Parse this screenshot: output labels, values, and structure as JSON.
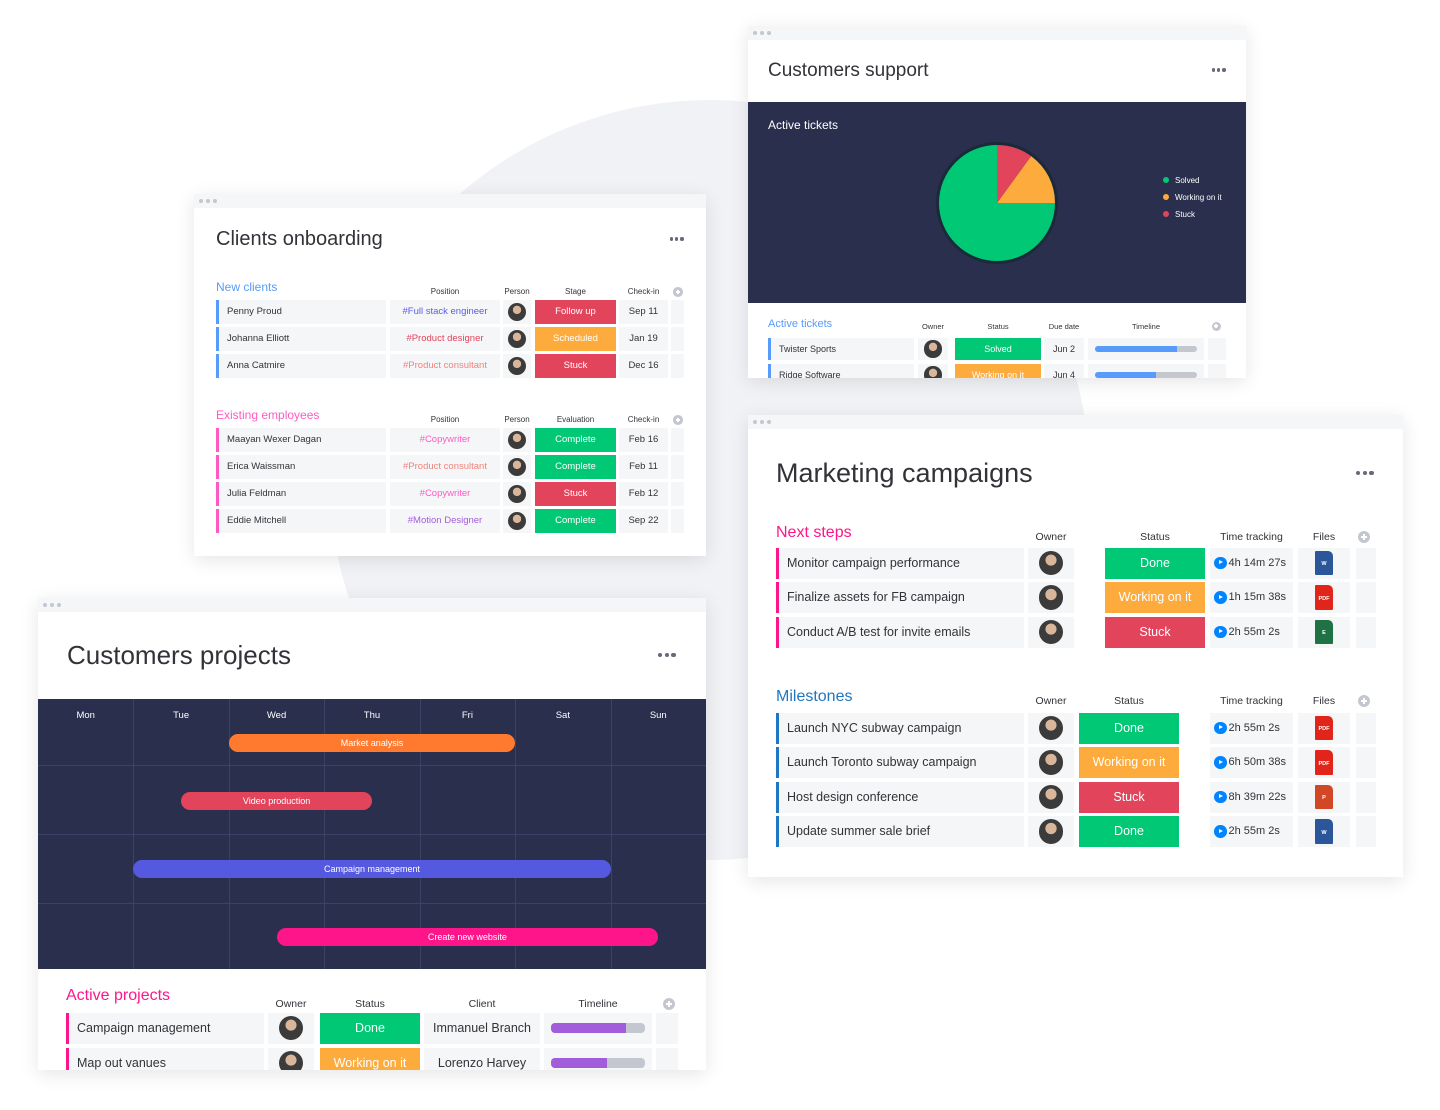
{
  "clients_onboarding": {
    "title": "Clients onboarding",
    "groups": [
      {
        "title": "New clients",
        "color": "#579bfc",
        "headers": [
          "Position",
          "Person",
          "Stage",
          "Check-in"
        ],
        "rows": [
          {
            "name": "Penny Proud",
            "position": {
              "label": "#Full stack engineer",
              "color": "#5b5be6"
            },
            "status": {
              "label": "Follow up",
              "color": "#e2445c"
            },
            "date": "Sep 11"
          },
          {
            "name": "Johanna Elliott",
            "position": {
              "label": "#Product designer",
              "color": "#e2445c"
            },
            "status": {
              "label": "Scheduled",
              "color": "#fdab3d"
            },
            "date": "Jan 19"
          },
          {
            "name": "Anna Catmire",
            "position": {
              "label": "#Product consultant",
              "color": "#f2837a"
            },
            "status": {
              "label": "Stuck",
              "color": "#e2445c"
            },
            "date": "Dec 16"
          }
        ]
      },
      {
        "title": "Existing employees",
        "color": "#ff5ac4",
        "headers": [
          "Position",
          "Person",
          "Evaluation",
          "Check-in"
        ],
        "rows": [
          {
            "name": "Maayan Wexer Dagan",
            "position": {
              "label": "#Copywriter",
              "color": "#ff5ac4"
            },
            "status": {
              "label": "Complete",
              "color": "#00c875"
            },
            "date": "Feb 16"
          },
          {
            "name": "Erica Waissman",
            "position": {
              "label": "#Product consultant",
              "color": "#f2837a"
            },
            "status": {
              "label": "Complete",
              "color": "#00c875"
            },
            "date": "Feb 11"
          },
          {
            "name": "Julia Feldman",
            "position": {
              "label": "#Copywriter",
              "color": "#ff5ac4"
            },
            "status": {
              "label": "Stuck",
              "color": "#e2445c"
            },
            "date": "Feb 12"
          },
          {
            "name": "Eddie Mitchell",
            "position": {
              "label": "#Motion Designer",
              "color": "#a25ddc"
            },
            "status": {
              "label": "Complete",
              "color": "#00c875"
            },
            "date": "Sep 22"
          }
        ]
      }
    ]
  },
  "customers_support": {
    "title": "Customers support",
    "chart": {
      "type": "pie",
      "title": "Active tickets",
      "series": [
        {
          "name": "Solved",
          "color": "#00c875",
          "value": 75
        },
        {
          "name": "Working on it",
          "color": "#fdab3d",
          "value": 15
        },
        {
          "name": "Stuck",
          "color": "#e2445c",
          "value": 10
        }
      ]
    },
    "group": {
      "title": "Active tickets",
      "color": "#579bfc",
      "timeline_color": "#579bfc",
      "headers": [
        "Owner",
        "Status",
        "Due date",
        "Timeline"
      ],
      "rows": [
        {
          "name": "Twister Sports",
          "status": {
            "label": "Solved",
            "color": "#00c875"
          },
          "date": "Jun 2",
          "timeline": 0.8
        },
        {
          "name": "Ridge Software",
          "status": {
            "label": "Working on it",
            "color": "#fdab3d"
          },
          "date": "Jun 4",
          "timeline": 0.6
        }
      ]
    }
  },
  "marketing_campaigns": {
    "title": "Marketing campaigns",
    "groups": [
      {
        "title": "Next steps",
        "color": "#ff158a",
        "headers": [
          "Owner",
          "Status",
          "Time tracking",
          "Files"
        ],
        "rows": [
          {
            "name": "Monitor campaign performance",
            "status": {
              "label": "Done",
              "color": "#00c875"
            },
            "time": "4h 14m 27s",
            "file": {
              "label": "W",
              "color": "#2b579a"
            }
          },
          {
            "name": "Finalize assets for FB campaign",
            "status": {
              "label": "Working on it",
              "color": "#fdab3d"
            },
            "time": "1h 15m 38s",
            "file": {
              "label": "PDF",
              "color": "#e1251b"
            }
          },
          {
            "name": "Conduct A/B test for invite emails",
            "status": {
              "label": "Stuck",
              "color": "#e2445c"
            },
            "time": "2h 55m 2s",
            "file": {
              "label": "E",
              "color": "#1f7244"
            }
          }
        ]
      },
      {
        "title": "Milestones",
        "color": "#1f76c2",
        "headers": [
          "Owner",
          "Status",
          "Time tracking",
          "Files"
        ],
        "rows": [
          {
            "name": "Launch NYC subway campaign",
            "status": {
              "label": "Done",
              "color": "#00c875"
            },
            "time": "2h 55m 2s",
            "file": {
              "label": "PDF",
              "color": "#e1251b"
            }
          },
          {
            "name": "Launch Toronto subway campaign",
            "status": {
              "label": "Working on it",
              "color": "#fdab3d"
            },
            "time": "6h 50m 38s",
            "file": {
              "label": "PDF",
              "color": "#e1251b"
            }
          },
          {
            "name": "Host design conference",
            "status": {
              "label": "Stuck",
              "color": "#e2445c"
            },
            "time": "8h 39m 22s",
            "file": {
              "label": "P",
              "color": "#d24726"
            }
          },
          {
            "name": "Update summer sale brief",
            "status": {
              "label": "Done",
              "color": "#00c875"
            },
            "time": "2h 55m 2s",
            "file": {
              "label": "W",
              "color": "#2b579a"
            }
          }
        ]
      }
    ]
  },
  "customers_projects": {
    "title": "Customers projects",
    "gantt": {
      "days": [
        "Mon",
        "Tue",
        "Wed",
        "Thu",
        "Fri",
        "Sat",
        "Sun"
      ],
      "tasks": [
        {
          "name": "Market analysis",
          "start": 2,
          "end": 5,
          "color": "#ff7a2f"
        },
        {
          "name": "Video production",
          "start": 1.5,
          "end": 3.5,
          "color": "#e2445c"
        },
        {
          "name": "Campaign management",
          "start": 1,
          "end": 6,
          "color": "#5559df"
        },
        {
          "name": "Create new website",
          "start": 2.5,
          "end": 6.5,
          "color": "#ff158a"
        }
      ]
    },
    "group": {
      "title": "Active projects",
      "color": "#ff158a",
      "timeline_color": "#a25ddc",
      "headers": [
        "Owner",
        "Status",
        "Client",
        "Timeline"
      ],
      "rows": [
        {
          "name": "Campaign management",
          "status": {
            "label": "Done",
            "color": "#00c875"
          },
          "client": "Immanuel Branch",
          "timeline": 0.8
        },
        {
          "name": "Map out vanues",
          "status": {
            "label": "Working on it",
            "color": "#fdab3d"
          },
          "client": "Lorenzo Harvey",
          "timeline": 0.6
        }
      ]
    }
  }
}
